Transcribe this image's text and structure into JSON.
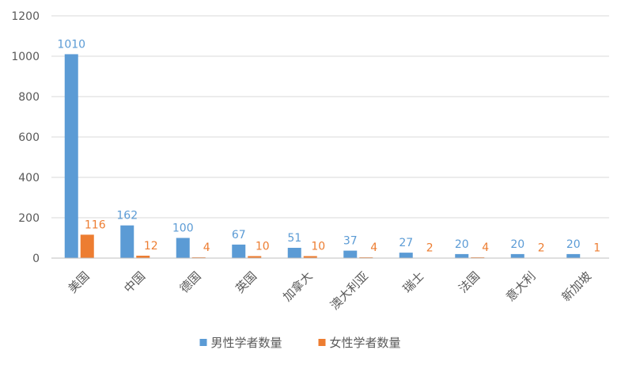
{
  "chart_data": {
    "type": "bar",
    "categories": [
      "美国",
      "中国",
      "德国",
      "英国",
      "加拿大",
      "澳大利亚",
      "瑞士",
      "法国",
      "意大利",
      "新加坡"
    ],
    "series": [
      {
        "name": "男性学者数量",
        "color": "#5b9bd5",
        "values": [
          1010,
          162,
          100,
          67,
          51,
          37,
          27,
          20,
          20,
          20
        ]
      },
      {
        "name": "女性学者数量",
        "color": "#ed7d31",
        "values": [
          116,
          12,
          4,
          10,
          10,
          4,
          2,
          4,
          2,
          1
        ]
      }
    ],
    "ylim": [
      0,
      1200
    ],
    "yticks": [
      0,
      200,
      400,
      600,
      800,
      1000,
      1200
    ],
    "grid": true,
    "legend_position": "bottom",
    "title": "",
    "xlabel": "",
    "ylabel": ""
  }
}
